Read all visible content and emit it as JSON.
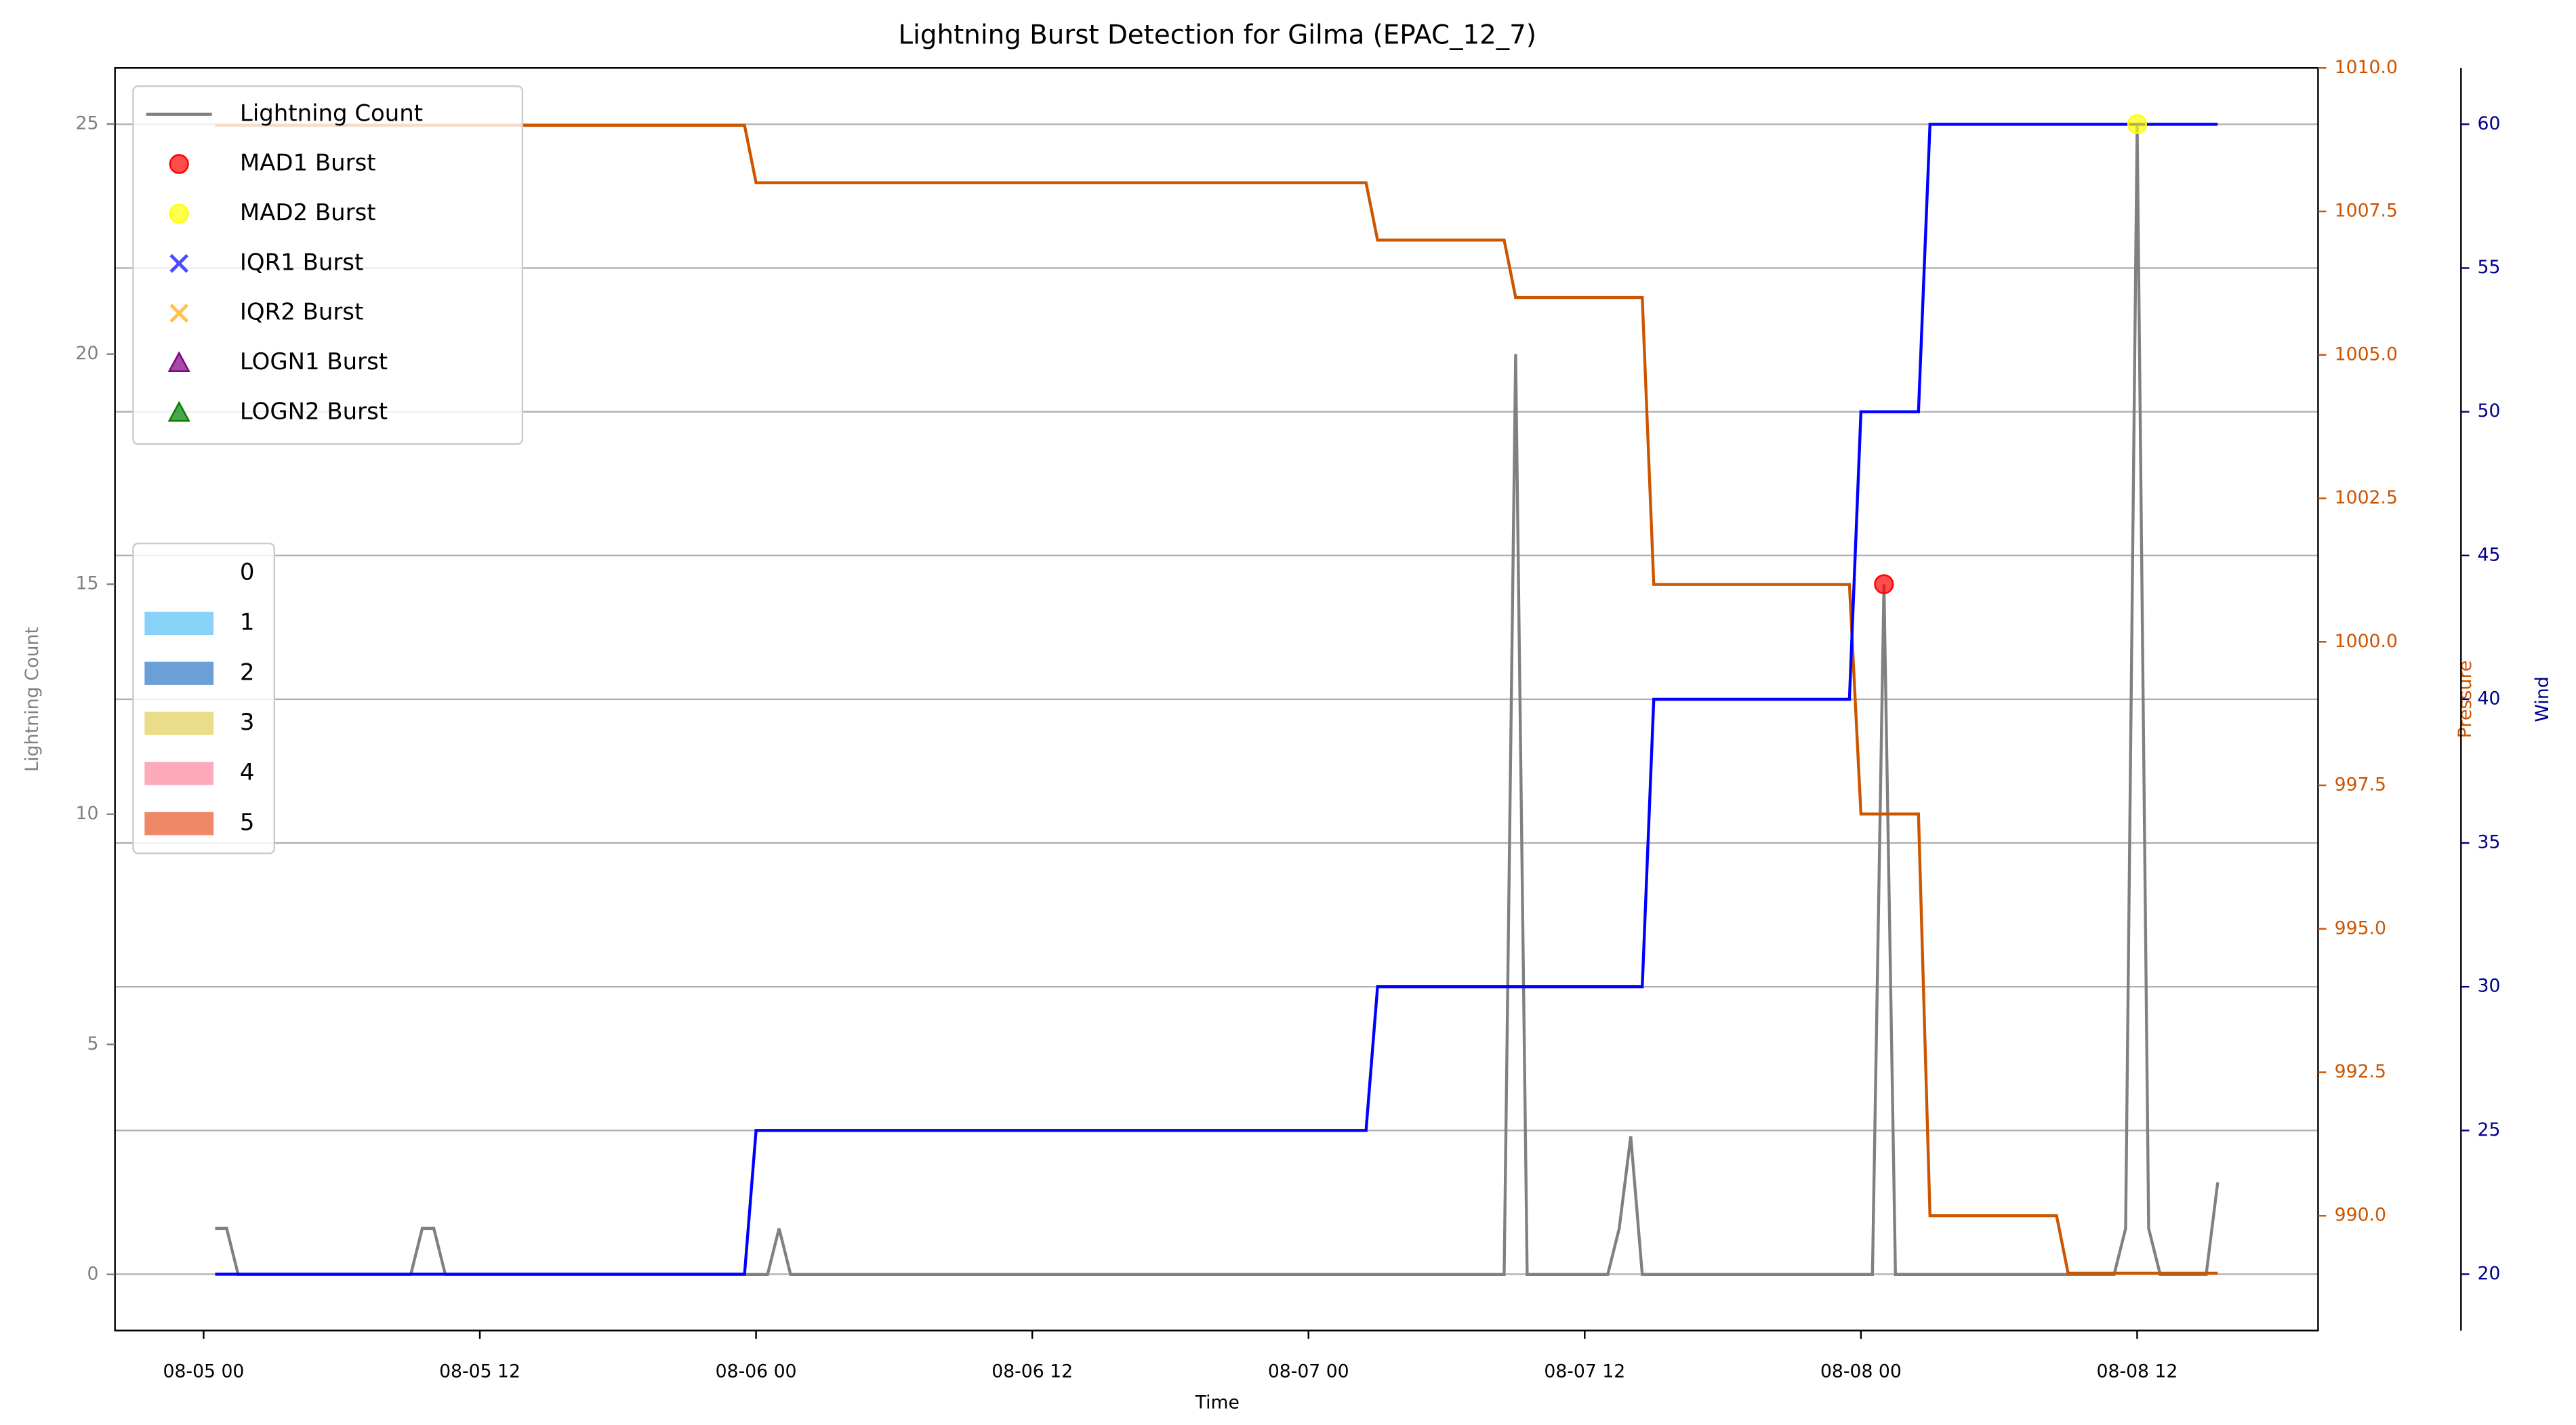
{
  "chart_data": {
    "type": "line",
    "title": "Lightning Burst Detection for Gilma (EPAC_12_7)",
    "x_label": "Time",
    "y_label": "Lightning Count",
    "y2_label": "Pressure",
    "y3_label": "Wind",
    "xlim": [
      -3.85,
      91.86
    ],
    "xticks": [
      {
        "value": 0,
        "label": "08-05 00"
      },
      {
        "value": 12,
        "label": "08-05 12"
      },
      {
        "value": 24,
        "label": "08-06 00"
      },
      {
        "value": 36,
        "label": "08-06 12"
      },
      {
        "value": 48,
        "label": "08-07 00"
      },
      {
        "value": 60,
        "label": "08-07 12"
      },
      {
        "value": 72,
        "label": "08-08 00"
      },
      {
        "value": 84,
        "label": "08-08 12"
      }
    ],
    "ylim": [
      -1.22,
      26.22
    ],
    "yticks": [
      0,
      5,
      10,
      15,
      20,
      25
    ],
    "y2lim": [
      988.0,
      1010.0
    ],
    "y2ticks": [
      {
        "value": 990,
        "label": "990.0"
      },
      {
        "value": 992.5,
        "label": "992.5"
      },
      {
        "value": 995,
        "label": "995.0"
      },
      {
        "value": 997.5,
        "label": "997.5"
      },
      {
        "value": 1000,
        "label": "1000.0"
      },
      {
        "value": 1002.5,
        "label": "1002.5"
      },
      {
        "value": 1005,
        "label": "1005.0"
      },
      {
        "value": 1007.5,
        "label": "1007.5"
      },
      {
        "value": 1010,
        "label": "1010.0"
      }
    ],
    "y3lim": [
      18.04,
      61.96
    ],
    "y3ticks": [
      20,
      25,
      30,
      35,
      40,
      45,
      50,
      55,
      60
    ],
    "grid": "y3",
    "legend_loc": "upper left",
    "series": [
      {
        "name": "Lightning Count",
        "color": "#808080",
        "axis": "y",
        "x": [
          0.5,
          1,
          1.5,
          9,
          9.5,
          10,
          10.5,
          24.5,
          25,
          25.5,
          56.5,
          57,
          57.5,
          61,
          61.5,
          62,
          62.5,
          72.5,
          73,
          73.5,
          83,
          83.5,
          84,
          84.5,
          85,
          87,
          87.5
        ],
        "values": [
          1,
          1,
          0,
          0,
          1,
          1,
          0,
          0,
          1,
          0,
          0,
          20,
          0,
          0,
          1,
          3,
          0,
          0,
          15,
          0,
          0,
          1,
          25,
          1,
          0,
          0,
          2
        ]
      },
      {
        "color": "#cc5500",
        "axis": "y2",
        "x": [
          0.5,
          23.5,
          24,
          50.5,
          51,
          56.5,
          57,
          62.5,
          63,
          71.5,
          72,
          74.5,
          75,
          80.5,
          81,
          87.5
        ],
        "values": [
          1009,
          1009,
          1008,
          1008,
          1007,
          1007,
          1006,
          1006,
          1001,
          1001,
          997,
          997,
          990,
          990,
          989,
          989
        ]
      },
      {
        "color": "#0000ff",
        "axis": "y3",
        "x": [
          0.5,
          23.5,
          24,
          50.5,
          51,
          62.5,
          63,
          71.5,
          72,
          74.5,
          75,
          87.5
        ],
        "values": [
          20,
          20,
          25,
          25,
          30,
          30,
          40,
          40,
          50,
          50,
          60,
          60
        ]
      }
    ],
    "bursts": [
      {
        "name": "MAD1 Burst",
        "color": "#ff0000",
        "marker": "o",
        "x": [
          73
        ],
        "values": [
          15
        ]
      },
      {
        "name": "MAD2 Burst",
        "color": "#ffff00",
        "marker": "o",
        "x": [
          84
        ],
        "values": [
          25
        ]
      },
      {
        "name": "IQR1 Burst",
        "color": "#0000ff",
        "marker": "x",
        "x": [],
        "values": []
      },
      {
        "name": "IQR2 Burst",
        "color": "#ffa500",
        "marker": "x",
        "x": [],
        "values": []
      },
      {
        "name": "LOGN1 Burst",
        "color": "#800080",
        "marker": "^",
        "x": [],
        "values": []
      },
      {
        "name": "LOGN2 Burst",
        "color": "#008000",
        "marker": "^",
        "x": [],
        "values": []
      }
    ],
    "category_legend": [
      {
        "name": "0",
        "color": "none"
      },
      {
        "name": "1",
        "color": "#87d3f8"
      },
      {
        "name": "2",
        "color": "#6a9fd8"
      },
      {
        "name": "3",
        "color": "#eadc88"
      },
      {
        "name": "4",
        "color": "#ffaabb"
      },
      {
        "name": "5",
        "color": "#ee8866"
      }
    ]
  }
}
